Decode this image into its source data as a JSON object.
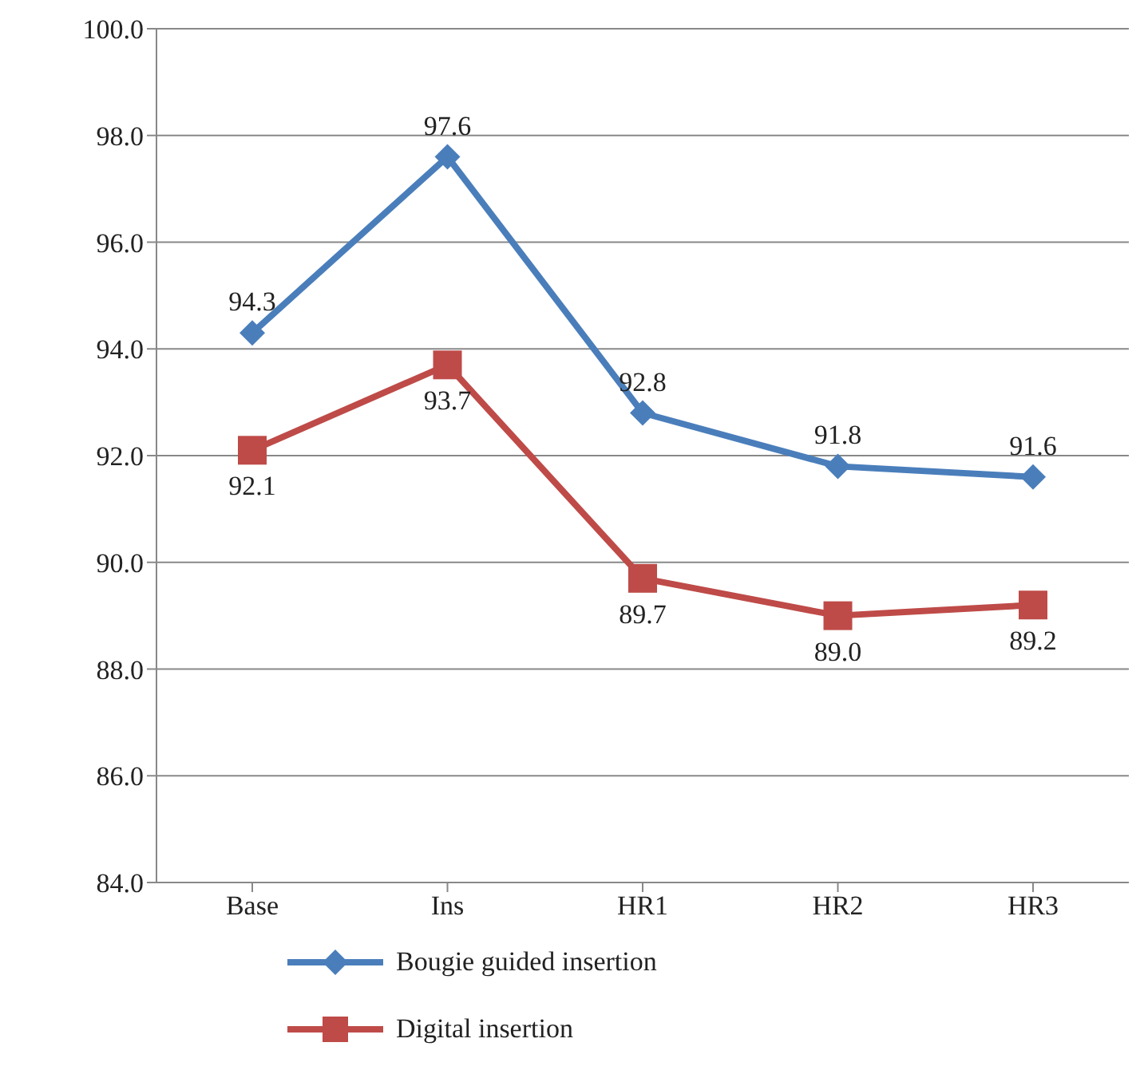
{
  "chart_data": {
    "type": "line",
    "categories": [
      "Base",
      "Ins",
      "HR1",
      "HR2",
      "HR3"
    ],
    "series": [
      {
        "name": "Bougie guided insertion",
        "color": "#4a7ebb",
        "marker": "diamond",
        "values": [
          94.3,
          97.6,
          92.8,
          91.8,
          91.6
        ],
        "value_labels": [
          "94.3",
          "97.6",
          "92.8",
          "91.8",
          "91.6"
        ]
      },
      {
        "name": "Digital insertion",
        "color": "#be4b48",
        "marker": "square",
        "values": [
          92.1,
          93.7,
          89.7,
          89.0,
          89.2
        ],
        "value_labels": [
          "92.1",
          "93.7",
          "89.7",
          "89.0",
          "89.2"
        ]
      }
    ],
    "ylim": [
      84,
      100
    ],
    "yticks": [
      {
        "value": 84,
        "label": "84.0"
      },
      {
        "value": 86,
        "label": "86.0"
      },
      {
        "value": 88,
        "label": "88.0"
      },
      {
        "value": 90,
        "label": "90.0"
      },
      {
        "value": 92,
        "label": "92.0"
      },
      {
        "value": 94,
        "label": "94.0"
      },
      {
        "value": 96,
        "label": "96.0"
      },
      {
        "value": 98,
        "label": "98.0"
      },
      {
        "value": 100,
        "label": "100.0"
      }
    ],
    "grid": "y",
    "legend": "bottom",
    "line_style": "solid"
  }
}
